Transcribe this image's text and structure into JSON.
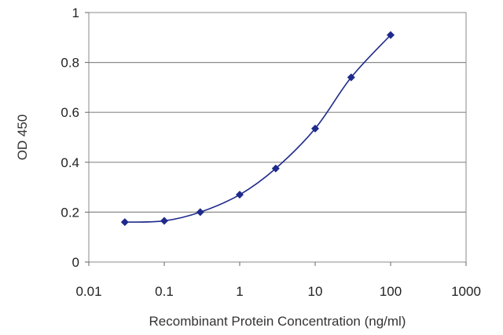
{
  "chart_data": {
    "type": "line",
    "xlabel": "Recombinant Protein Concentration (ng/ml)",
    "ylabel": "OD 450",
    "x_scale": "log",
    "xlim": [
      0.01,
      1000
    ],
    "ylim": [
      0,
      1
    ],
    "x_ticks": [
      0.01,
      0.1,
      1,
      10,
      100,
      1000
    ],
    "x_tick_labels": [
      "0.01",
      "0.1",
      "1",
      "10",
      "100",
      "1000"
    ],
    "y_ticks": [
      0,
      0.2,
      0.4,
      0.6,
      0.8,
      1
    ],
    "y_tick_labels": [
      "0",
      "0.2",
      "0.4",
      "0.6",
      "0.8",
      "1"
    ],
    "grid": "horizontal",
    "series": [
      {
        "color": "#1f2a8c",
        "x": [
          0.03,
          0.1,
          0.3,
          1,
          3,
          10,
          30,
          100
        ],
        "y": [
          0.16,
          0.165,
          0.2,
          0.27,
          0.375,
          0.535,
          0.74,
          0.91
        ]
      }
    ]
  }
}
